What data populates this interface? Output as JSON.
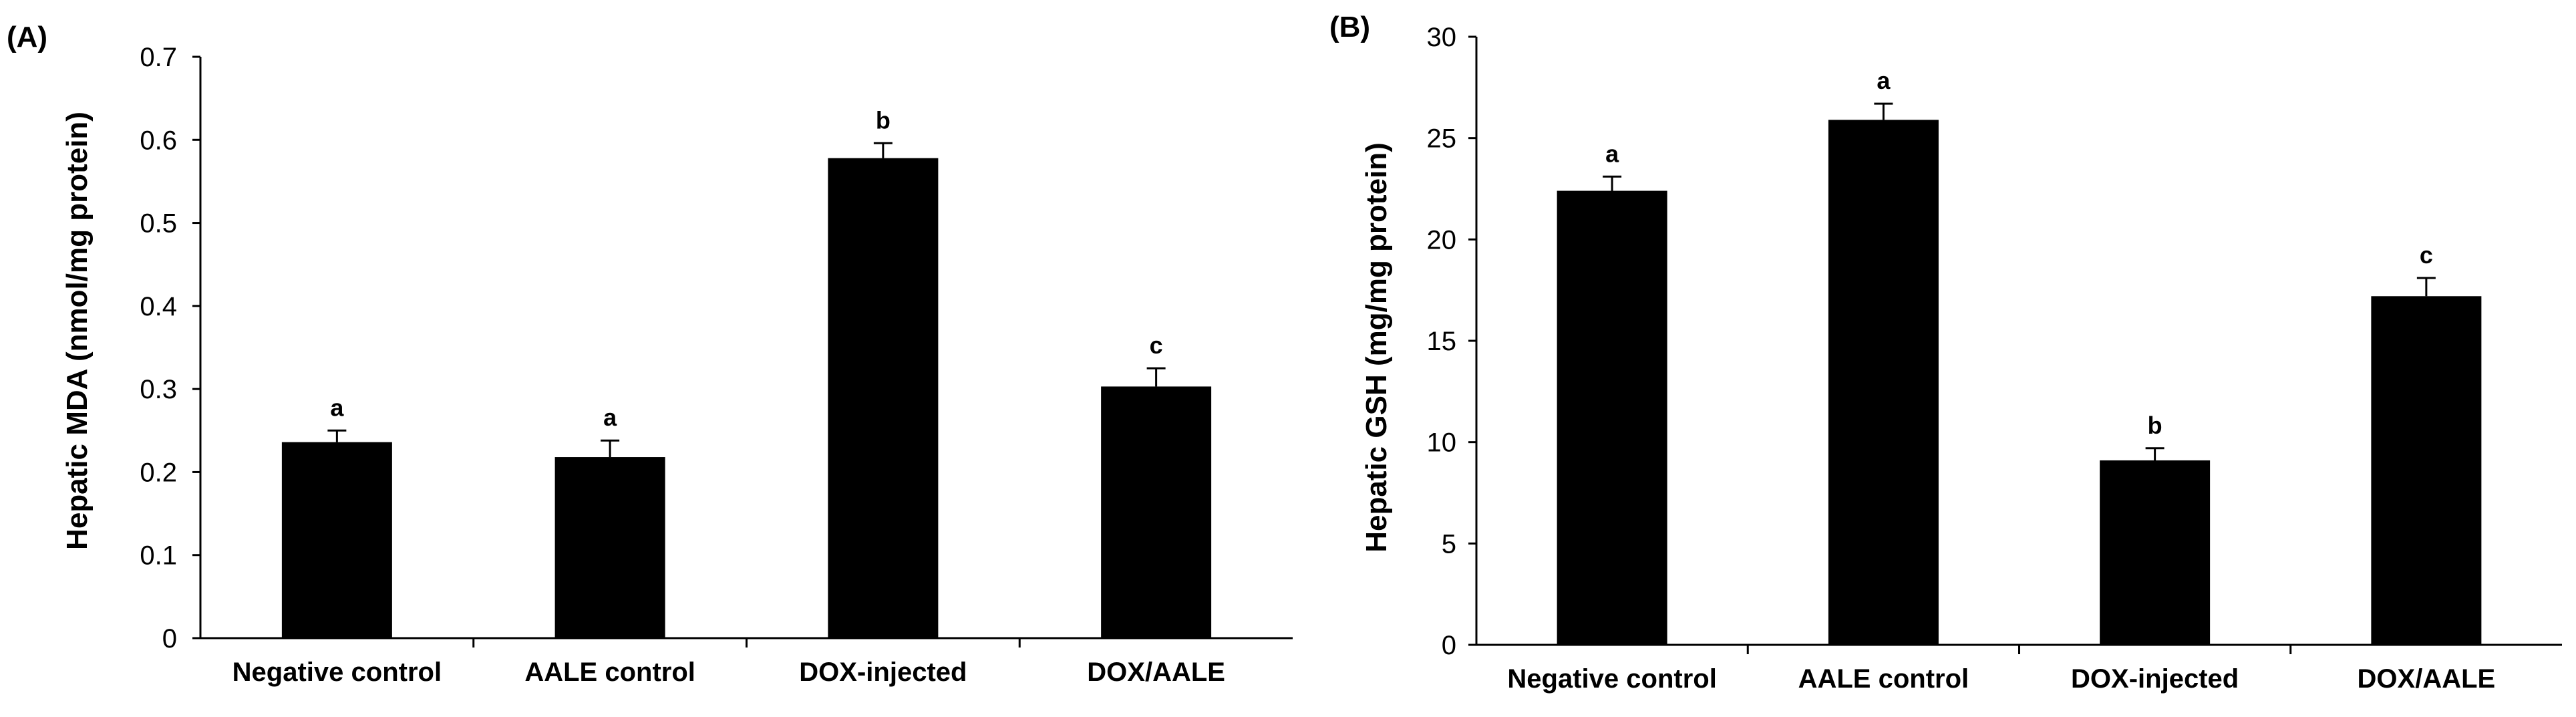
{
  "chart_data": [
    {
      "type": "bar",
      "panel_label": "(A)",
      "title": "",
      "xlabel": "",
      "ylabel": "Hepatic MDA (nmol/mg protein)",
      "categories": [
        "Negative control",
        "AALE control",
        "DOX-injected",
        "DOX/AALE"
      ],
      "values": [
        0.236,
        0.218,
        0.578,
        0.303
      ],
      "errors": [
        0.014,
        0.02,
        0.018,
        0.022
      ],
      "significance": [
        "a",
        "a",
        "b",
        "c"
      ],
      "ylim": [
        0,
        0.7
      ],
      "yticks": [
        "0",
        "0.1",
        "0.2",
        "0.3",
        "0.4",
        "0.5",
        "0.6",
        "0.7"
      ],
      "ytick_values": [
        0,
        0.1,
        0.2,
        0.3,
        0.4,
        0.5,
        0.6,
        0.7
      ],
      "grid": false,
      "bar_color": "#000000"
    },
    {
      "type": "bar",
      "panel_label": "(B)",
      "title": "",
      "xlabel": "",
      "ylabel": "Hepatic GSH (mg/mg protein)",
      "categories": [
        "Negative control",
        "AALE control",
        "DOX-injected",
        "DOX/AALE"
      ],
      "values": [
        22.4,
        25.9,
        9.1,
        17.2
      ],
      "errors": [
        0.7,
        0.8,
        0.6,
        0.9
      ],
      "significance": [
        "a",
        "a",
        "b",
        "c"
      ],
      "ylim": [
        0,
        30
      ],
      "yticks": [
        "0",
        "5",
        "10",
        "15",
        "20",
        "25",
        "30"
      ],
      "ytick_values": [
        0,
        5,
        10,
        15,
        20,
        25,
        30
      ],
      "grid": false,
      "bar_color": "#000000"
    }
  ]
}
